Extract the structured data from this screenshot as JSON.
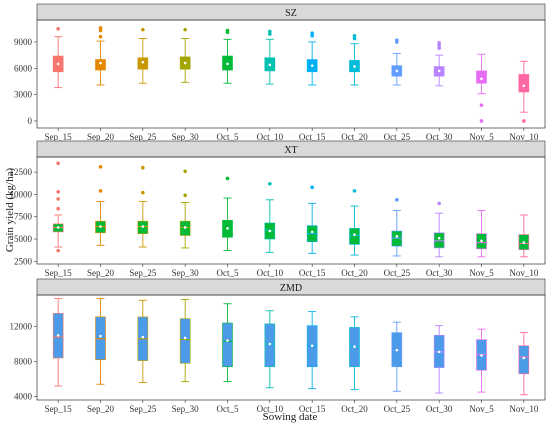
{
  "chart_data": {
    "type": "box",
    "xlabel": "Sowing date",
    "ylabel": "Grain yield (kg/ha)",
    "categories": [
      "Sep_15",
      "Sep_20",
      "Sep_25",
      "Sep_30",
      "Oct_5",
      "Oct_10",
      "Oct_15",
      "Oct_20",
      "Oct_25",
      "Oct_30",
      "Nov_5",
      "Nov_10"
    ],
    "colors": [
      "#F8766D",
      "#E58700",
      "#C99800",
      "#A3A500",
      "#00BA38",
      "#00C0AF",
      "#00B0F6",
      "#00BCD8",
      "#619CFF",
      "#B983FF",
      "#E76BF3",
      "#FF67A4"
    ],
    "panels": [
      {
        "title": "SZ",
        "ylim": [
          -800,
          11500
        ],
        "yticks": [
          0,
          3000,
          6000,
          9000
        ],
        "box_fill": "category",
        "boxes": [
          {
            "lw": 3800,
            "q1": 5600,
            "median": 6500,
            "q3": 7400,
            "uw": 9600,
            "mean": 6500,
            "outliers": [
              10500
            ]
          },
          {
            "lw": 4100,
            "q1": 5800,
            "median": 6600,
            "q3": 7000,
            "uw": 9100,
            "mean": 6600,
            "outliers": [
              9600,
              10300,
              10600
            ]
          },
          {
            "lw": 4300,
            "q1": 5900,
            "median": 6700,
            "q3": 7200,
            "uw": 9400,
            "mean": 6700,
            "outliers": [
              10400
            ]
          },
          {
            "lw": 4400,
            "q1": 5900,
            "median": 6700,
            "q3": 7300,
            "uw": 9400,
            "mean": 6600,
            "outliers": [
              10400
            ]
          },
          {
            "lw": 4300,
            "q1": 5800,
            "median": 6600,
            "q3": 7400,
            "uw": 9300,
            "mean": 6500,
            "outliers": [
              10100,
              10300
            ]
          },
          {
            "lw": 4200,
            "q1": 5700,
            "median": 6500,
            "q3": 7200,
            "uw": 9300,
            "mean": 6400,
            "outliers": [
              9900,
              10200
            ]
          },
          {
            "lw": 4100,
            "q1": 5600,
            "median": 6300,
            "q3": 7000,
            "uw": 9000,
            "mean": 6300,
            "outliers": [
              9700,
              10000
            ]
          },
          {
            "lw": 4100,
            "q1": 5600,
            "median": 6200,
            "q3": 6900,
            "uw": 8800,
            "mean": 6200,
            "outliers": [
              9400,
              9700
            ]
          },
          {
            "lw": 4100,
            "q1": 5100,
            "median": 5700,
            "q3": 6300,
            "uw": 7700,
            "mean": 5700,
            "outliers": [
              9000,
              9200
            ]
          },
          {
            "lw": 4000,
            "q1": 5100,
            "median": 5700,
            "q3": 6200,
            "uw": 7500,
            "mean": 5700,
            "outliers": [
              8300,
              8600,
              8900
            ]
          },
          {
            "lw": 3100,
            "q1": 4300,
            "median": 4900,
            "q3": 5700,
            "uw": 7600,
            "mean": 4800,
            "outliers": [
              0,
              1800
            ]
          },
          {
            "lw": 1000,
            "q1": 3300,
            "median": 4200,
            "q3": 5300,
            "uw": 6800,
            "mean": 4000,
            "outliers": [
              0
            ]
          }
        ]
      },
      {
        "title": "XT",
        "ylim": [
          2200,
          14200
        ],
        "yticks": [
          2500,
          5000,
          7500,
          10000,
          12500
        ],
        "box_fill": "#00BA38",
        "boxes": [
          {
            "lw": 4100,
            "q1": 5800,
            "median": 6300,
            "q3": 6700,
            "uw": 7700,
            "mean": 6300,
            "outliers": [
              3700,
              8400,
              9500,
              10300,
              13500
            ]
          },
          {
            "lw": 4300,
            "q1": 5700,
            "median": 6400,
            "q3": 7000,
            "uw": 9200,
            "mean": 6400,
            "outliers": [
              10400,
              13100
            ]
          },
          {
            "lw": 4100,
            "q1": 5600,
            "median": 6400,
            "q3": 7000,
            "uw": 9200,
            "mean": 6400,
            "outliers": [
              10200,
              13000
            ]
          },
          {
            "lw": 4000,
            "q1": 5400,
            "median": 6300,
            "q3": 7000,
            "uw": 9100,
            "mean": 6300,
            "outliers": [
              9900,
              12600
            ]
          },
          {
            "lw": 3700,
            "q1": 5200,
            "median": 6200,
            "q3": 7100,
            "uw": 9600,
            "mean": 6200,
            "outliers": [
              11800
            ]
          },
          {
            "lw": 3500,
            "q1": 5000,
            "median": 6000,
            "q3": 6800,
            "uw": 9400,
            "mean": 5900,
            "outliers": [
              11200
            ]
          },
          {
            "lw": 3400,
            "q1": 4700,
            "median": 5600,
            "q3": 6500,
            "uw": 9000,
            "mean": 5800,
            "outliers": [
              10800
            ]
          },
          {
            "lw": 3200,
            "q1": 4400,
            "median": 5400,
            "q3": 6200,
            "uw": 8700,
            "mean": 5500,
            "outliers": [
              10400
            ]
          },
          {
            "lw": 3100,
            "q1": 4200,
            "median": 5100,
            "q3": 5900,
            "uw": 8200,
            "mean": 5300,
            "outliers": [
              9400
            ]
          },
          {
            "lw": 3000,
            "q1": 4000,
            "median": 4800,
            "q3": 5700,
            "uw": 7900,
            "mean": 5100,
            "outliers": [
              9000
            ]
          },
          {
            "lw": 3000,
            "q1": 3900,
            "median": 4600,
            "q3": 5600,
            "uw": 8200,
            "mean": 4800,
            "outliers": []
          },
          {
            "lw": 3000,
            "q1": 3800,
            "median": 4500,
            "q3": 5500,
            "uw": 7700,
            "mean": 4600,
            "outliers": []
          }
        ]
      },
      {
        "title": "ZMD",
        "ylim": [
          3600,
          15600
        ],
        "yticks": [
          4000,
          8000,
          12000
        ],
        "box_fill": "#4C9BE8",
        "boxes": [
          {
            "lw": 5200,
            "q1": 8400,
            "median": 10800,
            "q3": 13500,
            "uw": 15200,
            "mean": 11000,
            "outliers": []
          },
          {
            "lw": 5400,
            "q1": 8200,
            "median": 10600,
            "q3": 13100,
            "uw": 15200,
            "mean": 10900,
            "outliers": []
          },
          {
            "lw": 5600,
            "q1": 8100,
            "median": 10600,
            "q3": 13100,
            "uw": 15000,
            "mean": 10800,
            "outliers": []
          },
          {
            "lw": 5700,
            "q1": 7800,
            "median": 10500,
            "q3": 12900,
            "uw": 15100,
            "mean": 10700,
            "outliers": []
          },
          {
            "lw": 5700,
            "q1": 7400,
            "median": 10300,
            "q3": 12400,
            "uw": 14600,
            "mean": 10400,
            "outliers": []
          },
          {
            "lw": 5000,
            "q1": 7400,
            "median": 10000,
            "q3": 12300,
            "uw": 13800,
            "mean": 10000,
            "outliers": []
          },
          {
            "lw": 4900,
            "q1": 7400,
            "median": 9800,
            "q3": 12100,
            "uw": 13700,
            "mean": 9800,
            "outliers": []
          },
          {
            "lw": 4800,
            "q1": 7400,
            "median": 9700,
            "q3": 11900,
            "uw": 13100,
            "mean": 9700,
            "outliers": []
          },
          {
            "lw": 4600,
            "q1": 7400,
            "median": 9300,
            "q3": 11300,
            "uw": 12500,
            "mean": 9300,
            "outliers": []
          },
          {
            "lw": 4400,
            "q1": 7300,
            "median": 9100,
            "q3": 11000,
            "uw": 12100,
            "mean": 9100,
            "outliers": []
          },
          {
            "lw": 4500,
            "q1": 7000,
            "median": 8800,
            "q3": 10500,
            "uw": 11700,
            "mean": 8700,
            "outliers": []
          },
          {
            "lw": 4200,
            "q1": 6600,
            "median": 8500,
            "q3": 9800,
            "uw": 11300,
            "mean": 8400,
            "outliers": []
          }
        ]
      }
    ]
  }
}
